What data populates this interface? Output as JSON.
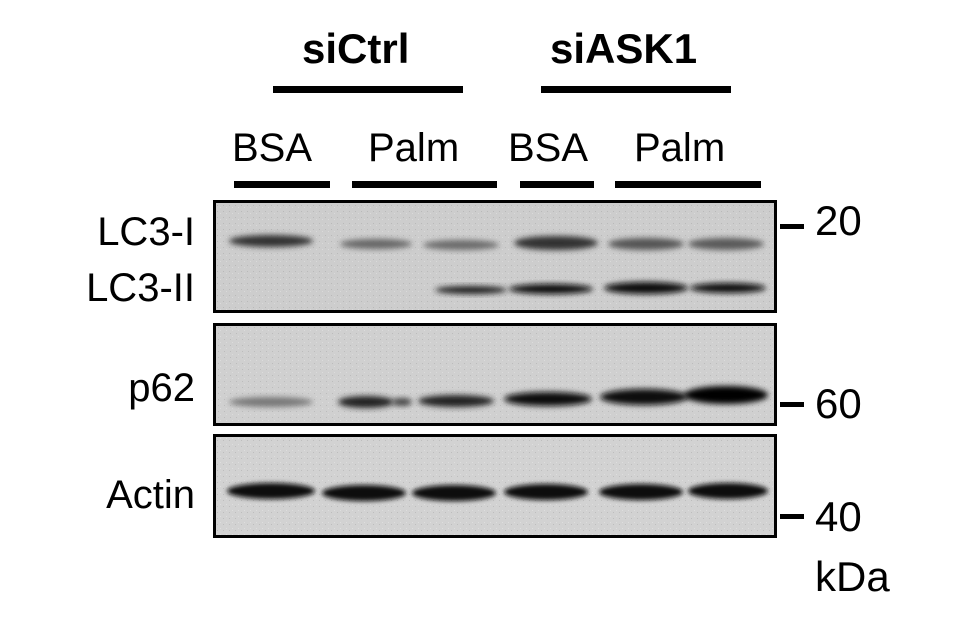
{
  "groups": [
    {
      "label": "siCtrl"
    },
    {
      "label": "siASK1"
    }
  ],
  "lane_labels": [
    {
      "label": "BSA"
    },
    {
      "label": "Palm"
    },
    {
      "label": "BSA"
    },
    {
      "label": "Palm"
    }
  ],
  "rows": {
    "lc3_i": "LC3-I",
    "lc3_ii": "LC3-II",
    "p62": "p62",
    "actin": "Actin"
  },
  "markers": {
    "m20": "20",
    "m60": "60",
    "m40": "40",
    "unit": "kDa"
  },
  "colors": {
    "panel_background": "#cfcfcf",
    "band": "#111111"
  }
}
